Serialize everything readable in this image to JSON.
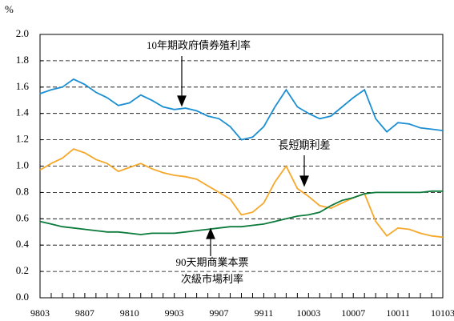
{
  "chart_data": {
    "type": "line",
    "y_unit": "%",
    "annotations": [
      "10年期政府債券殖利率",
      "長短期利差",
      [
        "90天期商業本票",
        "次級市場利率"
      ]
    ],
    "categories": [
      "9803",
      null,
      null,
      null,
      "9807",
      null,
      null,
      null,
      "9810",
      null,
      null,
      null,
      "9903",
      null,
      null,
      null,
      "9907",
      null,
      null,
      null,
      "9911",
      null,
      null,
      null,
      "10003",
      null,
      null,
      null,
      "10007",
      null,
      null,
      null,
      "10011",
      null,
      null,
      null,
      "10103"
    ],
    "series": [
      {
        "color": "#1b8fd2",
        "values": [
          1.55,
          1.58,
          1.6,
          1.66,
          1.62,
          1.56,
          1.52,
          1.46,
          1.48,
          1.54,
          1.5,
          1.45,
          1.43,
          1.44,
          1.42,
          1.38,
          1.36,
          1.3,
          1.2,
          1.22,
          1.3,
          1.45,
          1.58,
          1.45,
          1.4,
          1.36,
          1.38,
          1.45,
          1.52,
          1.58,
          1.36,
          1.26,
          1.33,
          1.32,
          1.29,
          1.28,
          1.27
        ]
      },
      {
        "color": "#f5a82a",
        "values": [
          0.97,
          1.02,
          1.06,
          1.13,
          1.1,
          1.05,
          1.02,
          0.96,
          0.99,
          1.02,
          0.98,
          0.95,
          0.93,
          0.92,
          0.9,
          0.85,
          0.8,
          0.75,
          0.63,
          0.65,
          0.72,
          0.88,
          1.0,
          0.83,
          0.77,
          0.7,
          0.68,
          0.72,
          0.76,
          0.79,
          0.58,
          0.47,
          0.53,
          0.52,
          0.49,
          0.47,
          0.46
        ]
      },
      {
        "color": "#0b7a3b",
        "values": [
          0.58,
          0.56,
          0.54,
          0.53,
          0.52,
          0.51,
          0.5,
          0.5,
          0.49,
          0.48,
          0.49,
          0.49,
          0.49,
          0.5,
          0.51,
          0.52,
          0.53,
          0.54,
          0.54,
          0.55,
          0.56,
          0.58,
          0.6,
          0.62,
          0.63,
          0.65,
          0.7,
          0.74,
          0.76,
          0.79,
          0.8,
          0.8,
          0.8,
          0.8,
          0.8,
          0.81,
          0.81
        ]
      }
    ],
    "ylim": [
      0,
      2
    ],
    "yticks": [
      {
        "value": 0,
        "label": "0.0"
      },
      0.2,
      0.4,
      0.6,
      0.8,
      {
        "value": 1,
        "label": "1.0"
      },
      1.2,
      1.4,
      1.6,
      1.8,
      {
        "value": 2,
        "label": "2.0"
      }
    ],
    "grid": true
  }
}
